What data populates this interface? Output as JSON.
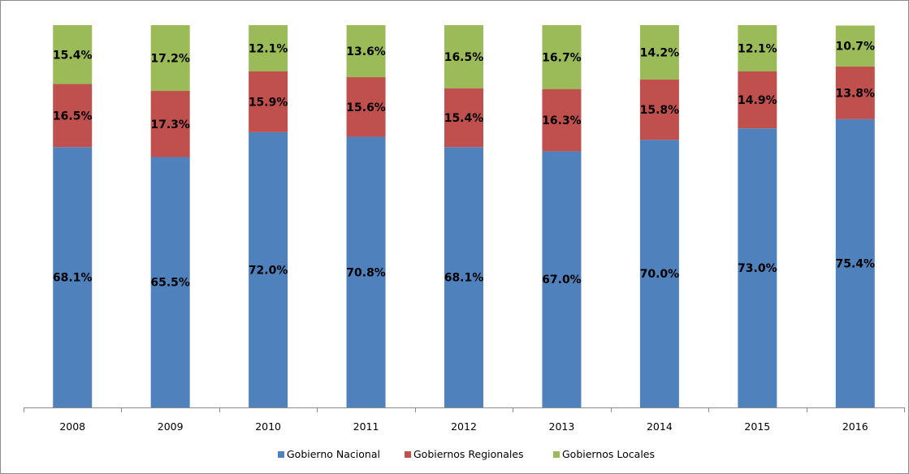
{
  "chart_data": {
    "type": "bar",
    "stacked": true,
    "normalized_100": true,
    "categories": [
      "2008",
      "2009",
      "2010",
      "2011",
      "2012",
      "2013",
      "2014",
      "2015",
      "2016"
    ],
    "series": [
      {
        "name": "Gobierno Nacional",
        "color": "#4f81bd",
        "values": [
          68.1,
          65.5,
          72.0,
          70.8,
          68.1,
          67.0,
          70.0,
          73.0,
          75.4
        ],
        "labels": [
          "68.1%",
          "65.5%",
          "72.0%",
          "70.8%",
          "68.1%",
          "67.0%",
          "70.0%",
          "73.0%",
          "75.4%"
        ]
      },
      {
        "name": "Gobiernos Regionales",
        "color": "#c0504d",
        "values": [
          16.5,
          17.3,
          15.9,
          15.6,
          15.4,
          16.3,
          15.8,
          14.9,
          13.8
        ],
        "labels": [
          "16.5%",
          "17.3%",
          "15.9%",
          "15.6%",
          "15.4%",
          "16.3%",
          "15.8%",
          "14.9%",
          "13.8%"
        ]
      },
      {
        "name": "Gobiernos Locales",
        "color": "#9bbb59",
        "values": [
          15.4,
          17.2,
          12.1,
          13.6,
          16.5,
          16.7,
          14.2,
          12.1,
          10.7
        ],
        "labels": [
          "15.4%",
          "17.2%",
          "12.1%",
          "13.6%",
          "16.5%",
          "16.7%",
          "14.2%",
          "12.1%",
          "10.7%"
        ]
      }
    ],
    "ylim": [
      0,
      100
    ],
    "grid": false,
    "legend_position": "bottom",
    "title": "",
    "xlabel": "",
    "ylabel": ""
  }
}
